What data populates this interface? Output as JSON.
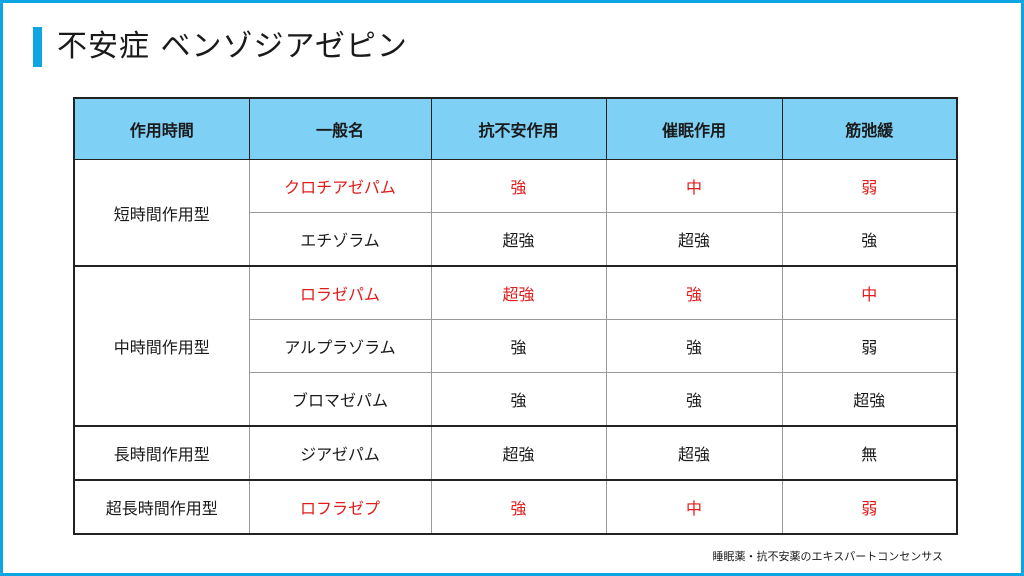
{
  "title": "不安症 ベンゾジアゼピン",
  "table": {
    "headers": [
      "作用時間",
      "一般名",
      "抗不安作用",
      "催眠作用",
      "筋弛緩"
    ],
    "groups": [
      {
        "duration": "短時間作用型",
        "rows": [
          {
            "name": "クロチアゼパム",
            "anxiolytic": "強",
            "hypnotic": "中",
            "relaxant": "弱",
            "highlight": true
          },
          {
            "name": "エチゾラム",
            "anxiolytic": "超強",
            "hypnotic": "超強",
            "relaxant": "強",
            "highlight": false
          }
        ]
      },
      {
        "duration": "中時間作用型",
        "rows": [
          {
            "name": "ロラゼパム",
            "anxiolytic": "超強",
            "hypnotic": "強",
            "relaxant": "中",
            "highlight": true
          },
          {
            "name": "アルプラゾラム",
            "anxiolytic": "強",
            "hypnotic": "強",
            "relaxant": "弱",
            "highlight": false
          },
          {
            "name": "ブロマゼパム",
            "anxiolytic": "強",
            "hypnotic": "強",
            "relaxant": "超強",
            "highlight": false
          }
        ]
      },
      {
        "duration": "長時間作用型",
        "rows": [
          {
            "name": "ジアゼパム",
            "anxiolytic": "超強",
            "hypnotic": "超強",
            "relaxant": "無",
            "highlight": false
          }
        ]
      },
      {
        "duration": "超長時間作用型",
        "rows": [
          {
            "name": "ロフラゼプ",
            "anxiolytic": "強",
            "hypnotic": "中",
            "relaxant": "弱",
            "highlight": true
          }
        ]
      }
    ]
  },
  "footer": "睡眠薬・抗不安薬のエキスパートコンセンサス",
  "colors": {
    "accent": "#0ea5e4",
    "header_bg": "#7ed0f5",
    "highlight_text": "#e21b1b"
  }
}
